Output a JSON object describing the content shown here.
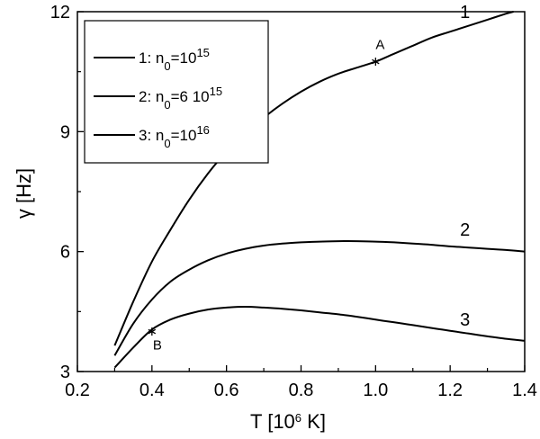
{
  "chart_data": {
    "type": "line",
    "xlabel": {
      "prefix": "T  [10",
      "sup": "6",
      "suffix": " K]"
    },
    "ylabel": "γ [Hz]",
    "xlim": [
      0.2,
      1.4
    ],
    "ylim": [
      3,
      12
    ],
    "xticks": [
      0.2,
      0.4,
      0.6,
      0.8,
      1.0,
      1.2,
      1.4
    ],
    "xtick_labels": [
      "0.2",
      "0.4",
      "0.6",
      "0.8",
      "1.0",
      "1.2",
      "1.4"
    ],
    "yticks": [
      3,
      6,
      9,
      12
    ],
    "ytick_labels": [
      "3",
      "6",
      "9",
      "12"
    ],
    "grid": false,
    "legend_position": "top-left",
    "series": [
      {
        "label": "1",
        "legend": {
          "prefix": "1: n",
          "sub": "0",
          "mid": "=10",
          "sup": "15"
        },
        "x": [
          0.3,
          0.35,
          0.4,
          0.45,
          0.5,
          0.55,
          0.6,
          0.65,
          0.7,
          0.75,
          0.8,
          0.85,
          0.9,
          0.95,
          1.0,
          1.05,
          1.1,
          1.15,
          1.2,
          1.25,
          1.3,
          1.35,
          1.37
        ],
        "y": [
          3.65,
          4.75,
          5.75,
          6.55,
          7.3,
          7.95,
          8.5,
          8.95,
          9.35,
          9.7,
          10.0,
          10.25,
          10.45,
          10.6,
          10.75,
          10.95,
          11.15,
          11.35,
          11.5,
          11.65,
          11.8,
          11.95,
          12.0
        ]
      },
      {
        "label": "2",
        "legend": {
          "prefix": "2: n",
          "sub": "0",
          "mid": "=6 10",
          "sup": "15"
        },
        "x": [
          0.3,
          0.35,
          0.4,
          0.45,
          0.5,
          0.55,
          0.6,
          0.65,
          0.7,
          0.75,
          0.8,
          0.85,
          0.9,
          0.95,
          1.0,
          1.05,
          1.1,
          1.15,
          1.2,
          1.25,
          1.3,
          1.35,
          1.4
        ],
        "y": [
          3.4,
          4.2,
          4.8,
          5.25,
          5.55,
          5.78,
          5.95,
          6.07,
          6.15,
          6.2,
          6.23,
          6.25,
          6.26,
          6.26,
          6.25,
          6.23,
          6.2,
          6.17,
          6.13,
          6.1,
          6.07,
          6.04,
          6.0
        ]
      },
      {
        "label": "3",
        "legend": {
          "prefix": "3: n",
          "sub": "0",
          "mid": "=10",
          "sup": "16"
        },
        "x": [
          0.3,
          0.35,
          0.4,
          0.45,
          0.5,
          0.55,
          0.6,
          0.65,
          0.7,
          0.75,
          0.8,
          0.85,
          0.9,
          0.95,
          1.0,
          1.05,
          1.1,
          1.15,
          1.2,
          1.25,
          1.3,
          1.35,
          1.4
        ],
        "y": [
          3.1,
          3.6,
          4.05,
          4.3,
          4.45,
          4.55,
          4.6,
          4.62,
          4.6,
          4.57,
          4.53,
          4.48,
          4.43,
          4.37,
          4.3,
          4.23,
          4.16,
          4.09,
          4.02,
          3.95,
          3.88,
          3.82,
          3.77
        ]
      }
    ],
    "markers": [
      {
        "label": "A",
        "x": 1.0,
        "y": 10.75
      },
      {
        "label": "B",
        "x": 0.4,
        "y": 4.0
      }
    ],
    "curve_label_positions": [
      {
        "x": 1.24,
        "y": 12.0
      },
      {
        "x": 1.24,
        "y": 6.55
      },
      {
        "x": 1.24,
        "y": 4.3
      }
    ]
  }
}
